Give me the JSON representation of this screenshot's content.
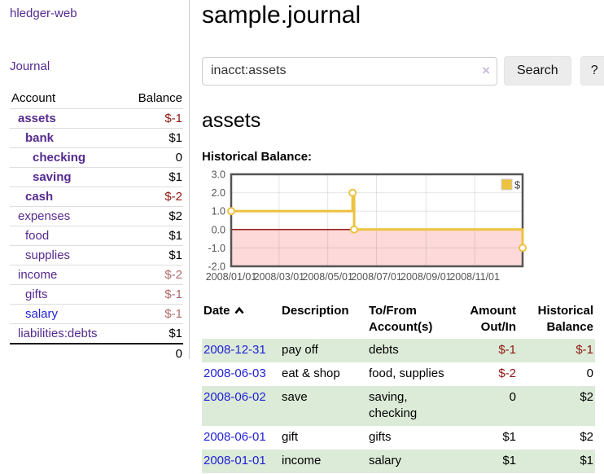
{
  "app": {
    "title": "hledger-web"
  },
  "sidebar": {
    "journal_label": "Journal",
    "accounts": {
      "headers": {
        "account": "Account",
        "balance": "Balance"
      },
      "rows": [
        {
          "name": "assets",
          "balance": "$-1"
        },
        {
          "name": "bank",
          "balance": "$1"
        },
        {
          "name": "checking",
          "balance": "0"
        },
        {
          "name": "saving",
          "balance": "$1"
        },
        {
          "name": "cash",
          "balance": "$-2"
        },
        {
          "name": "expenses",
          "balance": "$2"
        },
        {
          "name": "food",
          "balance": "$1"
        },
        {
          "name": "supplies",
          "balance": "$1"
        },
        {
          "name": "income",
          "balance": "$-2"
        },
        {
          "name": "gifts",
          "balance": "$-1"
        },
        {
          "name": "salary",
          "balance": "$-1"
        },
        {
          "name": "liabilities:debts",
          "balance": "$1"
        }
      ],
      "total": "0"
    }
  },
  "header": {
    "title": "sample.journal"
  },
  "search": {
    "value": "inacct:assets",
    "clear_icon": "×",
    "button_label": "Search",
    "help_label": "?"
  },
  "account_page": {
    "title": "assets",
    "chart_heading": "Historical Balance:"
  },
  "chart_data": {
    "type": "line",
    "subtype": "step",
    "title": "Historical Balance",
    "x_range": [
      "2008-01-01",
      "2008-12-31"
    ],
    "ylim": [
      -2,
      3
    ],
    "y_ticks": [
      3.0,
      2.0,
      1.0,
      0.0,
      -1.0,
      -2.0
    ],
    "x_ticks": [
      "2008/01/01",
      "2008/03/01",
      "2008/05/01",
      "2008/07/01",
      "2008/09/01",
      "2008/11/01"
    ],
    "series": [
      {
        "name": "$",
        "color": "#edc240",
        "points": [
          [
            "2008-01-01",
            1
          ],
          [
            "2008-06-01",
            2
          ],
          [
            "2008-06-03",
            0
          ],
          [
            "2008-12-31",
            -1
          ]
        ]
      }
    ],
    "grid": true,
    "negative_region_color": "#fdd9d9",
    "zero_line_color": "#8b0000",
    "border_color": "#545454",
    "axis_text_color": "#545454",
    "legend": {
      "label": "$",
      "position": "top-right"
    }
  },
  "register": {
    "headers": {
      "date": "Date",
      "sort_icon": "chevron-up",
      "description": "Description",
      "tofrom": "To/From Account(s)",
      "amount": "Amount Out/In",
      "balance": "Historical Balance"
    },
    "rows": [
      {
        "date": "2008-12-31",
        "description": "pay off",
        "tofrom": "debts",
        "amount": "$-1",
        "balance": "$-1"
      },
      {
        "date": "2008-06-03",
        "description": "eat & shop",
        "tofrom": "food, supplies",
        "amount": "$-2",
        "balance": "0"
      },
      {
        "date": "2008-06-02",
        "description": "save",
        "tofrom": "saving, checking",
        "amount": "0",
        "balance": "$2"
      },
      {
        "date": "2008-06-01",
        "description": "gift",
        "tofrom": "gifts",
        "amount": "$1",
        "balance": "$2"
      },
      {
        "date": "2008-01-01",
        "description": "income",
        "tofrom": "salary",
        "amount": "$1",
        "balance": "$1"
      }
    ]
  }
}
